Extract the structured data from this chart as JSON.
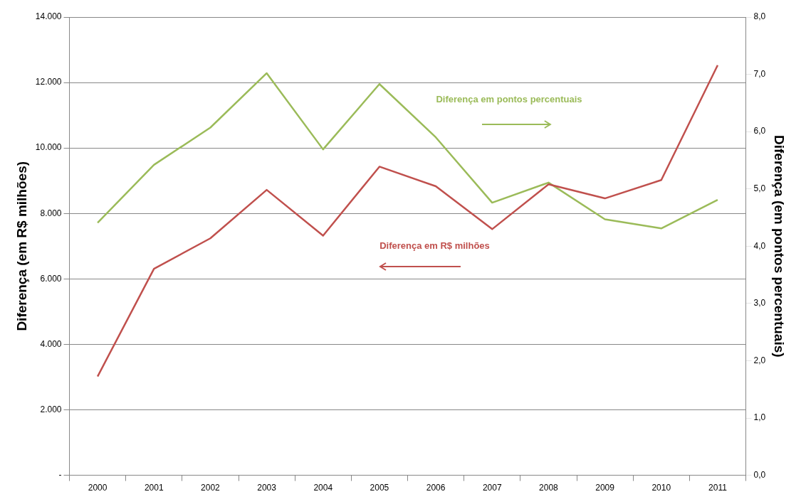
{
  "chart_data": {
    "type": "line",
    "categories": [
      "2000",
      "2001",
      "2002",
      "2003",
      "2004",
      "2005",
      "2006",
      "2007",
      "2008",
      "2009",
      "2010",
      "2011"
    ],
    "series": [
      {
        "color": "#c0504d",
        "values": [
          3020,
          6310,
          7240,
          8720,
          7320,
          9430,
          8830,
          7520,
          8890,
          8460,
          9020,
          12530
        ]
      },
      {
        "color": "#9bbb59",
        "axis": "y2",
        "values": [
          4.41,
          5.42,
          6.07,
          7.02,
          5.69,
          6.83,
          5.9,
          4.76,
          5.11,
          4.47,
          4.31,
          4.81
        ]
      }
    ],
    "ylabel": "Diferença (em R$ milhões)",
    "y2label": "Diferença (em pontos percentuais)",
    "ylim": [
      0,
      14000
    ],
    "yticks": [
      {
        "value": 0,
        "label": "-"
      },
      {
        "value": 2000,
        "label": "2.000"
      },
      {
        "value": 4000,
        "label": "4.000"
      },
      {
        "value": 6000,
        "label": "6.000"
      },
      {
        "value": 8000,
        "label": "8.000"
      },
      {
        "value": 10000,
        "label": "10.000"
      },
      {
        "value": 12000,
        "label": "12.000"
      },
      {
        "value": 14000,
        "label": "14.000"
      }
    ],
    "y2lim": [
      0,
      8
    ],
    "y2ticks": [
      {
        "value": 0,
        "label": "0,0"
      },
      {
        "value": 1,
        "label": "1,0"
      },
      {
        "value": 2,
        "label": "2,0"
      },
      {
        "value": 3,
        "label": "3,0"
      },
      {
        "value": 4,
        "label": "4,0"
      },
      {
        "value": 5,
        "label": "5,0"
      },
      {
        "value": 6,
        "label": "6,0"
      },
      {
        "value": 7,
        "label": "7,0"
      },
      {
        "value": 8,
        "label": "8,0"
      }
    ],
    "annotations": [
      "Diferença em R$ milhões",
      "Diferença em pontos percentuais"
    ],
    "grid": "y",
    "legend": false,
    "marker": "none",
    "line_style": "solid"
  }
}
